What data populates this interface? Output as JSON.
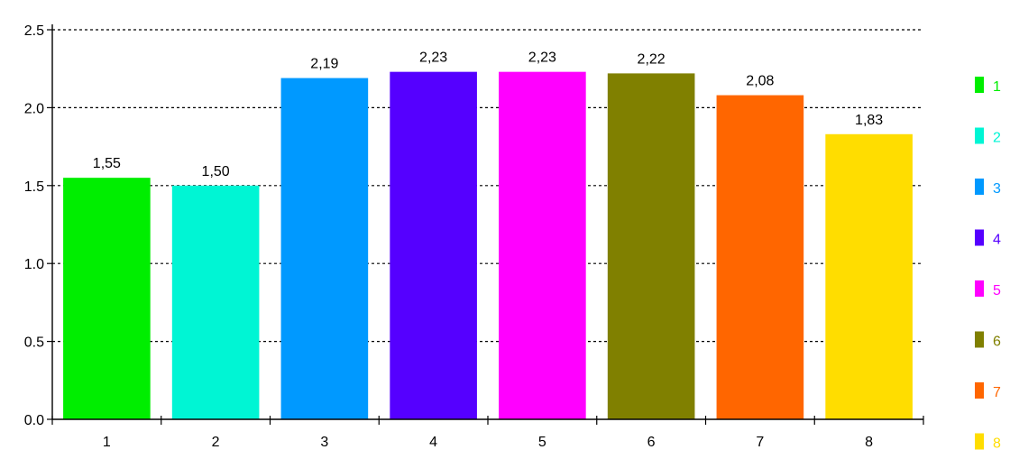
{
  "chart_data": {
    "type": "bar",
    "title": "",
    "xlabel": "",
    "ylabel": "",
    "ylim": [
      0,
      2.5
    ],
    "yticks": [
      "0.0",
      "0.5",
      "1.0",
      "1.5",
      "2.0",
      "2.5"
    ],
    "grid": true,
    "legend_position": "right",
    "categories": [
      "1",
      "2",
      "3",
      "4",
      "5",
      "6",
      "7",
      "8"
    ],
    "values": [
      1.55,
      1.5,
      2.19,
      2.23,
      2.23,
      2.22,
      2.08,
      1.83
    ],
    "value_labels": [
      "1,55",
      "1,50",
      "2,19",
      "2,23",
      "2,23",
      "2,22",
      "2,08",
      "1,83"
    ],
    "colors": [
      "#00ee00",
      "#00f5d4",
      "#0099ff",
      "#5500ff",
      "#ff00ff",
      "#808000",
      "#ff6600",
      "#ffdd00"
    ],
    "legend": [
      {
        "label": "1",
        "color": "#00ee00"
      },
      {
        "label": "2",
        "color": "#00f5d4"
      },
      {
        "label": "3",
        "color": "#0099ff"
      },
      {
        "label": "4",
        "color": "#5500ff"
      },
      {
        "label": "5",
        "color": "#ff00ff"
      },
      {
        "label": "6",
        "color": "#808000"
      },
      {
        "label": "7",
        "color": "#ff6600"
      },
      {
        "label": "8",
        "color": "#ffdd00"
      }
    ]
  }
}
